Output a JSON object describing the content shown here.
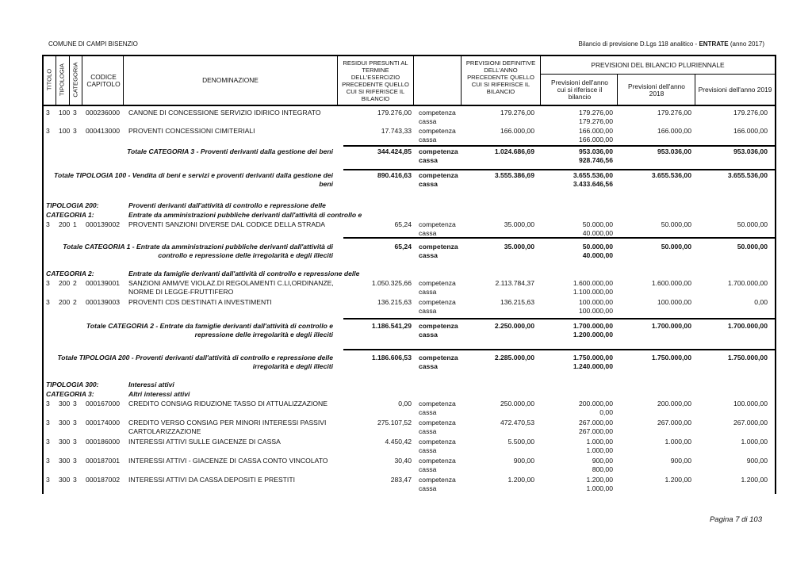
{
  "page": {
    "entity": "COMUNE DI CAMPI BISENZIO",
    "report_title_prefix": "Bilancio di previsione D.Lgs 118 analitico - ",
    "report_title_bold": "ENTRATE",
    "report_title_suffix": " (anno 2017)",
    "footer": "Pagina 7 di 103"
  },
  "headers": {
    "titolo": "TITOLO",
    "tipologia": "TIPOLOGIA",
    "categoria": "CATEGORIA",
    "codice": "CODICE CAPITOLO",
    "denominazione": "DENOMINAZIONE",
    "residui": "RESIDUI PRESUNTI AL TERMINE DELL'ESERCIZIO PRECEDENTE QUELLO CUI SI RIFERISCE IL BILANCIO",
    "prev_def": "PREVISIONI DEFINITIVE DELL'ANNO PRECEDENTE QUELLO CUI SI RIFERISCE IL BILANCIO",
    "pluriennale": "PREVISIONI DEL BILANCIO PLURIENNALE",
    "anno": "Previsioni dell'anno cui si riferisce il bilancio",
    "y2018": "Previsioni dell'anno 2018",
    "y2019": "Previsioni dell'anno 2019"
  },
  "labels": {
    "competenza": "competenza",
    "cassa": "cassa"
  },
  "rows": [
    {
      "kind": "item",
      "titolo": "3",
      "tipologia": "100",
      "categoria": "3",
      "codice": "000236000",
      "denominazione": "CANONE DI CONCESSIONE SERVIZIO IDIRICO INTEGRATO",
      "residui": "179.276,00",
      "prev_def": "179.276,00",
      "anno_comp": "179.276,00",
      "anno_cassa": "179.276,00",
      "y2018": "179.276,00",
      "y2019": "179.276,00"
    },
    {
      "kind": "item",
      "titolo": "3",
      "tipologia": "100",
      "categoria": "3",
      "codice": "000413000",
      "denominazione": "PROVENTI CONCESSIONI CIMITERIALI",
      "residui": "17.743,33",
      "prev_def": "166.000,00",
      "anno_comp": "166.000,00",
      "anno_cassa": "166.000,00",
      "y2018": "166.000,00",
      "y2019": "166.000,00"
    },
    {
      "kind": "total",
      "label": "Totale CATEGORIA 3 - Proventi derivanti dalla gestione dei beni",
      "residui": "344.424,85",
      "prev_def": "1.024.686,69",
      "anno_comp": "953.036,00",
      "anno_cassa": "928.746,56",
      "y2018": "953.036,00",
      "y2019": "953.036,00"
    },
    {
      "kind": "total",
      "label": "Totale TIPOLOGIA 100 - Vendita di beni e servizi e proventi derivanti dalla gestione dei beni",
      "residui": "890.416,63",
      "prev_def": "3.555.386,69",
      "anno_comp": "3.655.536,00",
      "anno_cassa": "3.433.646,56",
      "y2018": "3.655.536,00",
      "y2019": "3.655.536,00"
    },
    {
      "kind": "section",
      "key": "TIPOLOGIA 200:",
      "text": "Proventi derivanti dall'attività di controllo e repressione delle"
    },
    {
      "kind": "section",
      "key": "CATEGORIA 1:",
      "text": "Entrate da amministrazioni pubbliche derivanti dall'attività di controllo e"
    },
    {
      "kind": "item",
      "titolo": "3",
      "tipologia": "200",
      "categoria": "1",
      "codice": "000139002",
      "denominazione": "PROVENTI SANZIONI DIVERSE DAL CODICE DELLA STRADA",
      "residui": "65,24",
      "prev_def": "35.000,00",
      "anno_comp": "50.000,00",
      "anno_cassa": "40.000,00",
      "y2018": "50.000,00",
      "y2019": "50.000,00"
    },
    {
      "kind": "total",
      "label": "Totale CATEGORIA 1 - Entrate da amministrazioni pubbliche derivanti dall'attività di controllo e repressione delle irregolarità e degli illeciti",
      "residui": "65,24",
      "prev_def": "35.000,00",
      "anno_comp": "50.000,00",
      "anno_cassa": "40.000,00",
      "y2018": "50.000,00",
      "y2019": "50.000,00"
    },
    {
      "kind": "section",
      "key": "CATEGORIA 2:",
      "text": "Entrate da famiglie derivanti dall'attività di controllo e repressione delle"
    },
    {
      "kind": "item",
      "titolo": "3",
      "tipologia": "200",
      "categoria": "2",
      "codice": "000139001",
      "denominazione": "SANZIONI AMM/VE VIOLAZ.DI REGOLAMENTI C.LI,ORDINANZE, NORME DI LEGGE-FRUTTIFERO",
      "residui": "1.050.325,66",
      "prev_def": "2.113.784,37",
      "anno_comp": "1.600.000,00",
      "anno_cassa": "1.100.000,00",
      "y2018": "1.600.000,00",
      "y2019": "1.700.000,00"
    },
    {
      "kind": "item",
      "titolo": "3",
      "tipologia": "200",
      "categoria": "2",
      "codice": "000139003",
      "denominazione": "PROVENTI CDS DESTINATI A INVESTIMENTI",
      "residui": "136.215,63",
      "prev_def": "136.215,63",
      "anno_comp": "100.000,00",
      "anno_cassa": "100.000,00",
      "y2018": "100.000,00",
      "y2019": "0,00"
    },
    {
      "kind": "total",
      "label": "Totale CATEGORIA 2 - Entrate da famiglie derivanti dall'attività di controllo e repressione delle irregolarità e degli illeciti",
      "residui": "1.186.541,29",
      "prev_def": "2.250.000,00",
      "anno_comp": "1.700.000,00",
      "anno_cassa": "1.200.000,00",
      "y2018": "1.700.000,00",
      "y2019": "1.700.000,00"
    },
    {
      "kind": "total",
      "label": "Totale TIPOLOGIA 200 - Proventi derivanti dall'attività di controllo e repressione delle irregolarità e degli illeciti",
      "residui": "1.186.606,53",
      "prev_def": "2.285.000,00",
      "anno_comp": "1.750.000,00",
      "anno_cassa": "1.240.000,00",
      "y2018": "1.750.000,00",
      "y2019": "1.750.000,00"
    },
    {
      "kind": "section",
      "key": "TIPOLOGIA 300:",
      "text": "Interessi attivi"
    },
    {
      "kind": "section",
      "key": "CATEGORIA 3:",
      "text": "Altri interessi attivi"
    },
    {
      "kind": "item",
      "titolo": "3",
      "tipologia": "300",
      "categoria": "3",
      "codice": "000167000",
      "denominazione": "CREDITO CONSIAG RIDUZIONE TASSO DI ATTUALIZZAZIONE",
      "residui": "0,00",
      "prev_def": "250.000,00",
      "anno_comp": "200.000,00",
      "anno_cassa": "0,00",
      "y2018": "200.000,00",
      "y2019": "100.000,00"
    },
    {
      "kind": "item",
      "titolo": "3",
      "tipologia": "300",
      "categoria": "3",
      "codice": "000174000",
      "denominazione": "CREDITO VERSO CONSIAG PER MINORI INTERESSI PASSIVI CARTOLARIZZAZIONE",
      "residui": "275.107,52",
      "prev_def": "472.470,53",
      "anno_comp": "267.000,00",
      "anno_cassa": "267.000,00",
      "y2018": "267.000,00",
      "y2019": "267.000,00"
    },
    {
      "kind": "item",
      "titolo": "3",
      "tipologia": "300",
      "categoria": "3",
      "codice": "000186000",
      "denominazione": "INTERESSI ATTIVI SULLE GIACENZE DI CASSA",
      "residui": "4.450,42",
      "prev_def": "5.500,00",
      "anno_comp": "1.000,00",
      "anno_cassa": "1.000,00",
      "y2018": "1.000,00",
      "y2019": "1.000,00"
    },
    {
      "kind": "item",
      "titolo": "3",
      "tipologia": "300",
      "categoria": "3",
      "codice": "000187001",
      "denominazione": "INTERESSI ATTIVI - GIACENZE DI CASSA CONTO VINCOLATO",
      "residui": "30,40",
      "prev_def": "900,00",
      "anno_comp": "900,00",
      "anno_cassa": "800,00",
      "y2018": "900,00",
      "y2019": "900,00"
    },
    {
      "kind": "item",
      "titolo": "3",
      "tipologia": "300",
      "categoria": "3",
      "codice": "000187002",
      "denominazione": "INTERESSI ATTIVI DA CASSA DEPOSITI E PRESTITI",
      "residui": "283,47",
      "prev_def": "1.200,00",
      "anno_comp": "1.200,00",
      "anno_cassa": "1.000,00",
      "y2018": "1.200,00",
      "y2019": "1.200,00"
    }
  ]
}
